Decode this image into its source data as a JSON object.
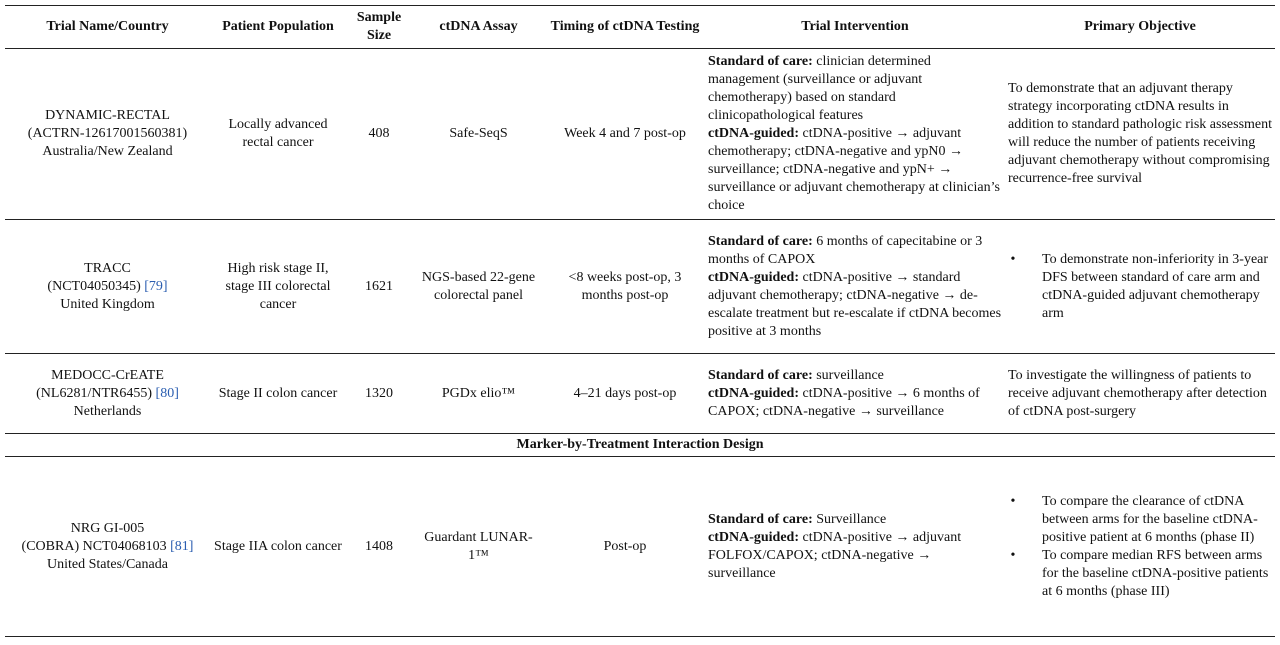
{
  "headers": [
    "Trial Name/Country",
    "Patient Population",
    "Sample Size",
    "ctDNA Assay",
    "Timing of ctDNA Testing",
    "Trial Intervention",
    "Primary Objective"
  ],
  "rows": [
    {
      "trial_name": "DYNAMIC-RECTAL",
      "trial_id": "(ACTRN-12617001560381)",
      "country": "Australia/New Zealand",
      "population": "Locally advanced rectal cancer",
      "sample_size": "408",
      "assay": "Safe-SeqS",
      "timing": "Week 4 and 7 post-op",
      "soc_label": "Standard of care:",
      "soc_text": " clinician determined management (surveillance or adjuvant chemotherapy) based on standard clinicopathological features",
      "guided_label": "ctDNA-guided:",
      "guided_text": " ctDNA-positive → adjuvant chemotherapy; ctDNA-negative and ypN0 → surveillance; ctDNA-negative and ypN+ → surveillance or adjuvant chemotherapy at clinician’s choice",
      "objective": "To demonstrate that an adjuvant therapy strategy incorporating ctDNA results in addition to standard pathologic risk assessment will reduce the number of patients receiving adjuvant chemotherapy without compromising recurrence-free survival"
    },
    {
      "trial_name": "TRACC",
      "trial_id": "(NCT04050345)",
      "ref": "[79]",
      "country": "United Kingdom",
      "population": "High risk stage II, stage III colorectal cancer",
      "sample_size": "1621",
      "assay": "NGS-based 22-gene colorectal panel",
      "timing": "<8 weeks post-op, 3 months post-op",
      "soc_label": "Standard of care:",
      "soc_text": " 6 months of capecitabine or 3 months of CAPOX",
      "guided_label": "ctDNA-guided:",
      "guided_text": " ctDNA-positive → standard adjuvant chemotherapy; ctDNA-negative → de-escalate treatment but re-escalate if ctDNA becomes positive at 3 months",
      "objective_items": [
        "To demonstrate non-inferiority in 3-year DFS between standard of care arm and ctDNA-guided adjuvant chemotherapy arm"
      ]
    },
    {
      "trial_name": "MEDOCC-CrEATE",
      "trial_id": "(NL6281/NTR6455)",
      "ref": "[80]",
      "country": "Netherlands",
      "population": "Stage II colon cancer",
      "sample_size": "1320",
      "assay": "PGDx elio™",
      "timing": "4–21 days post-op",
      "soc_label": "Standard of care:",
      "soc_text": " surveillance",
      "guided_label": "ctDNA-guided:",
      "guided_text": " ctDNA-positive → 6 months of CAPOX; ctDNA-negative → surveillance",
      "objective": "To investigate the willingness of patients to receive adjuvant chemotherapy after detection of ctDNA post-surgery"
    }
  ],
  "section_title": "Marker-by-Treatment Interaction Design",
  "row4": {
    "trial_name": "NRG GI-005",
    "trial_id": "(COBRA) NCT04068103",
    "ref": "[81]",
    "country": "United States/Canada",
    "population": "Stage IIA colon cancer",
    "sample_size": "1408",
    "assay": "Guardant LUNAR-1™",
    "timing": "Post-op",
    "soc_label": "Standard of care:",
    "soc_text": " Surveillance",
    "guided_label": "ctDNA-guided:",
    "guided_text": " ctDNA-positive → adjuvant FOLFOX/CAPOX; ctDNA-negative → surveillance",
    "objective_items": [
      "To compare the clearance of ctDNA between arms for the baseline ctDNA-positive patient at 6 months (phase II)",
      "To compare median RFS between arms for the baseline ctDNA-positive patients at 6 months (phase III)"
    ]
  }
}
